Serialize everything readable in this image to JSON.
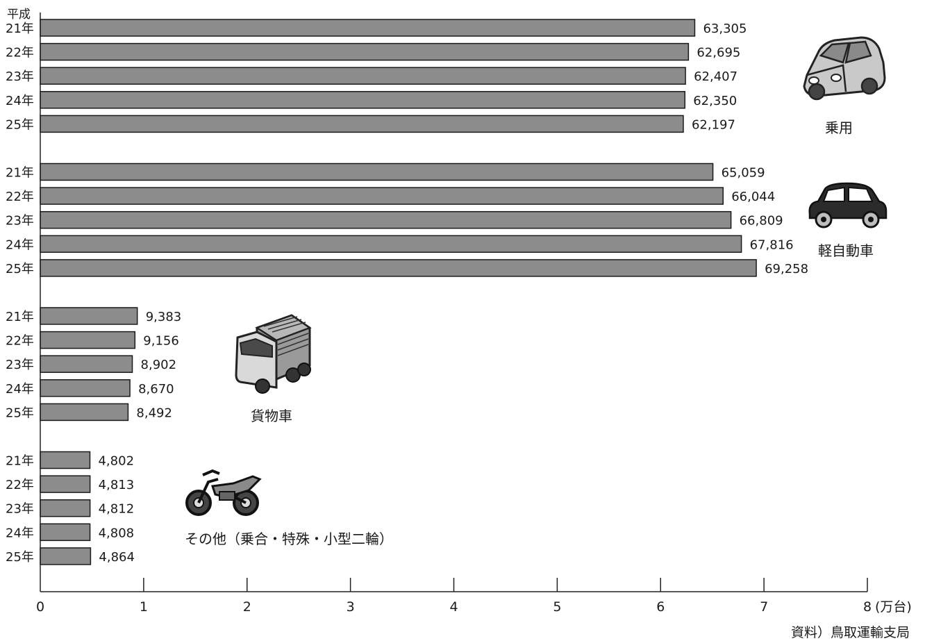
{
  "era_label": "平成",
  "source": "資料）鳥取運輸支局",
  "chart_data": {
    "type": "bar",
    "orientation": "horizontal",
    "x_unit_label": "(万台)",
    "xlim": [
      0,
      8
    ],
    "x_ticks": [
      "0",
      "1",
      "2",
      "3",
      "4",
      "5",
      "6",
      "7",
      "8"
    ],
    "row_labels": [
      "21年",
      "22年",
      "23年",
      "24年",
      "25年"
    ],
    "groups": [
      {
        "name": "乗用",
        "icon": "car-icon",
        "values": [
          63305,
          62695,
          62407,
          62350,
          62197
        ],
        "value_labels": [
          "63,305",
          "62,695",
          "62,407",
          "62,350",
          "62,197"
        ]
      },
      {
        "name": "軽自動車",
        "icon": "kei-car-icon",
        "values": [
          65059,
          66044,
          66809,
          67816,
          69258
        ],
        "value_labels": [
          "65,059",
          "66,044",
          "66,809",
          "67,816",
          "69,258"
        ]
      },
      {
        "name": "貨物車",
        "icon": "truck-icon",
        "values": [
          9383,
          9156,
          8902,
          8670,
          8492
        ],
        "value_labels": [
          "9,383",
          "9,156",
          "8,902",
          "8,670",
          "8,492"
        ]
      },
      {
        "name": "その他（乗合・特殊・小型二輪）",
        "icon": "motorcycle-icon",
        "values": [
          4802,
          4813,
          4812,
          4808,
          4864
        ],
        "value_labels": [
          "4,802",
          "4,813",
          "4,812",
          "4,808",
          "4,864"
        ]
      }
    ],
    "bar_color": "#8c8c8c",
    "grid": false,
    "legend": "none"
  }
}
